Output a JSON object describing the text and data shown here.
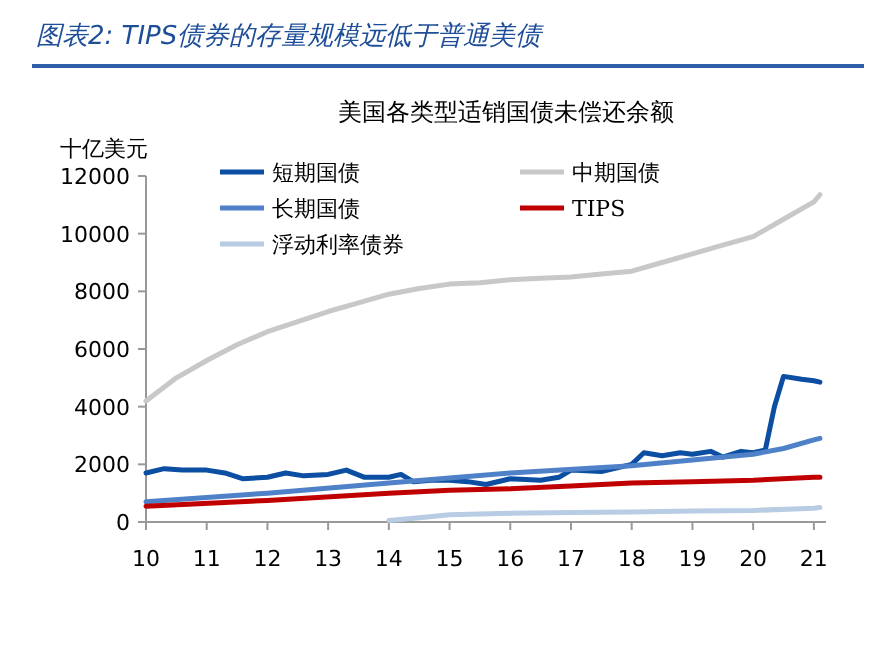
{
  "chart_data": {
    "type": "line",
    "title": "美国各类型适销国债未偿还余额",
    "subtitle": "图表2: TIPS债券的存量规模远低于普通美债",
    "ylabel": "十亿美元",
    "xlim": [
      10,
      21.2
    ],
    "xticks": [
      10,
      11,
      12,
      13,
      14,
      15,
      16,
      17,
      18,
      19,
      20,
      21
    ],
    "ylim": [
      0,
      12000
    ],
    "yticks": [
      0,
      2000,
      4000,
      6000,
      8000,
      10000,
      12000
    ],
    "grid": false,
    "legend": "top",
    "marker": "none",
    "line_style": "solid",
    "series": [
      {
        "name": "短期国债",
        "color": "#0b4ea2",
        "x": [
          10,
          10.3,
          10.6,
          11,
          11.3,
          11.6,
          12,
          12.3,
          12.6,
          13,
          13.3,
          13.6,
          14,
          14.2,
          14.4,
          14.7,
          15,
          15.3,
          15.6,
          16,
          16.5,
          16.8,
          17,
          17.5,
          18,
          18.2,
          18.5,
          18.8,
          19,
          19.3,
          19.5,
          19.8,
          20,
          20.2,
          20.35,
          20.5,
          20.8,
          21,
          21.1
        ],
        "values": [
          1700,
          1850,
          1800,
          1800,
          1700,
          1500,
          1550,
          1700,
          1600,
          1650,
          1800,
          1550,
          1550,
          1650,
          1400,
          1450,
          1450,
          1400,
          1300,
          1500,
          1450,
          1550,
          1800,
          1750,
          2000,
          2400,
          2300,
          2400,
          2350,
          2450,
          2250,
          2450,
          2400,
          2500,
          4000,
          5050,
          4950,
          4900,
          4850
        ]
      },
      {
        "name": "中期国债",
        "color": "#c8c8c8",
        "x": [
          10,
          10.5,
          11,
          11.5,
          12,
          12.5,
          13,
          13.5,
          14,
          14.5,
          15,
          15.5,
          16,
          16.5,
          17,
          17.5,
          18,
          18.5,
          19,
          19.5,
          20,
          20.5,
          21,
          21.1
        ],
        "values": [
          4200,
          5000,
          5600,
          6150,
          6600,
          6950,
          7300,
          7600,
          7900,
          8100,
          8250,
          8300,
          8400,
          8450,
          8500,
          8600,
          8700,
          9000,
          9300,
          9600,
          9900,
          10500,
          11100,
          11350
        ]
      },
      {
        "name": "长期国债",
        "color": "#4f81c8",
        "x": [
          10,
          12,
          14,
          16,
          18,
          19,
          20,
          20.5,
          21,
          21.1
        ],
        "values": [
          700,
          1000,
          1350,
          1700,
          1950,
          2150,
          2350,
          2550,
          2850,
          2900
        ]
      },
      {
        "name": "TIPS",
        "color": "#c00000",
        "x": [
          10,
          12,
          14,
          15,
          16,
          17,
          18,
          19,
          20,
          21,
          21.1
        ],
        "values": [
          550,
          750,
          1000,
          1100,
          1150,
          1250,
          1350,
          1400,
          1450,
          1550,
          1550
        ]
      },
      {
        "name": "浮动利率债券",
        "color": "#b8cce4",
        "x": [
          14,
          14.5,
          15,
          16,
          17,
          18,
          19,
          20,
          21,
          21.1
        ],
        "values": [
          50,
          150,
          250,
          300,
          330,
          350,
          380,
          400,
          480,
          500
        ]
      }
    ]
  }
}
